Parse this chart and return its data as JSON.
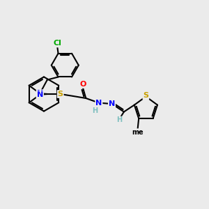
{
  "background_color": "#ebebeb",
  "atom_colors": {
    "C": "#000000",
    "N": "#0000ff",
    "S": "#c8a000",
    "O": "#ff0000",
    "Cl": "#00aa00",
    "H": "#7fbfbf"
  },
  "bond_color": "#000000",
  "bond_width": 1.5,
  "fig_width": 3.0,
  "fig_height": 3.0,
  "dpi": 100
}
